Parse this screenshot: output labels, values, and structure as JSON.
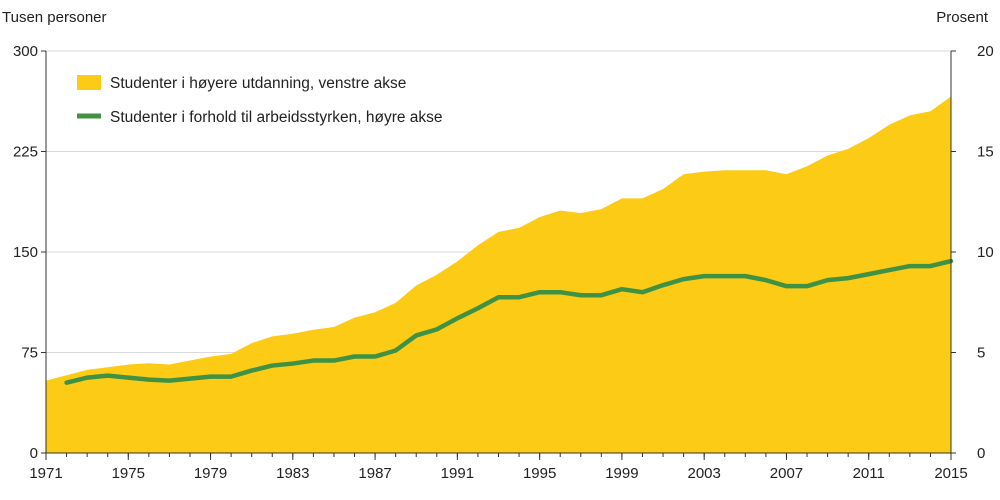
{
  "chart_data": {
    "type": "area",
    "left_axis_title": "Tusen personer",
    "right_axis_title": "Prosent",
    "left_ylim": [
      0,
      300
    ],
    "right_ylim": [
      0,
      20
    ],
    "left_ticks": [
      "0",
      "75",
      "150",
      "225",
      "300"
    ],
    "right_ticks": [
      "0",
      "5",
      "10",
      "15",
      "20"
    ],
    "xlim": [
      1971,
      2015
    ],
    "x_ticks": [
      "1971",
      "1975",
      "1979",
      "1983",
      "1987",
      "1991",
      "1995",
      "1999",
      "2003",
      "2007",
      "2011",
      "2015"
    ],
    "grid": "horizontal",
    "colors": {
      "area": "#FCCB16",
      "line": "#3F9243",
      "grid": "#d9d9d9",
      "axis": "#333333"
    },
    "series": [
      {
        "name": "Studenter i høyere utdanning, venstre akse",
        "axis": "left",
        "kind": "area",
        "x": [
          1971,
          1972,
          1973,
          1974,
          1975,
          1976,
          1977,
          1978,
          1979,
          1980,
          1981,
          1982,
          1983,
          1984,
          1985,
          1986,
          1987,
          1988,
          1989,
          1990,
          1991,
          1992,
          1993,
          1994,
          1995,
          1996,
          1997,
          1998,
          1999,
          2000,
          2001,
          2002,
          2003,
          2004,
          2005,
          2006,
          2007,
          2008,
          2009,
          2010,
          2011,
          2012,
          2013,
          2014,
          2015
        ],
        "values": [
          54,
          58,
          62,
          64,
          66,
          67,
          66,
          69,
          72,
          74,
          82,
          87,
          89,
          92,
          94,
          101,
          105,
          112,
          125,
          133,
          143,
          155,
          165,
          168,
          176,
          181,
          179,
          182,
          190,
          190,
          197,
          208,
          210,
          211,
          211,
          211,
          208,
          214,
          222,
          227,
          235,
          245,
          252,
          255,
          266
        ]
      },
      {
        "name": "Studenter i forhold til arbeidsstyrken, høyre akse",
        "axis": "right",
        "kind": "line",
        "x": [
          1972,
          1973,
          1974,
          1975,
          1976,
          1977,
          1978,
          1979,
          1980,
          1981,
          1982,
          1983,
          1984,
          1985,
          1986,
          1987,
          1988,
          1989,
          1990,
          1991,
          1992,
          1993,
          1994,
          1995,
          1996,
          1997,
          1998,
          1999,
          2000,
          2001,
          2002,
          2003,
          2004,
          2005,
          2006,
          2007,
          2008,
          2009,
          2010,
          2011,
          2012,
          2013,
          2014,
          2015
        ],
        "values": [
          3.5,
          3.75,
          3.85,
          3.75,
          3.65,
          3.6,
          3.7,
          3.8,
          3.8,
          4.1,
          4.35,
          4.45,
          4.6,
          4.6,
          4.8,
          4.8,
          5.1,
          5.85,
          6.15,
          6.7,
          7.2,
          7.75,
          7.75,
          8.0,
          8.0,
          7.85,
          7.85,
          8.15,
          8.0,
          8.35,
          8.65,
          8.8,
          8.8,
          8.8,
          8.6,
          8.3,
          8.3,
          8.6,
          8.7,
          8.9,
          9.1,
          9.3,
          9.3,
          9.55
        ]
      }
    ]
  }
}
